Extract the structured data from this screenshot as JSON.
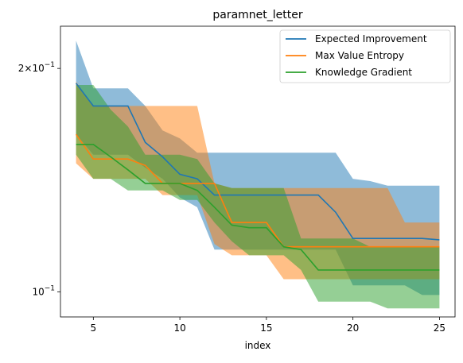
{
  "chart_data": {
    "type": "line",
    "title": "paramnet_letter",
    "xlabel": "index",
    "ylabel": "",
    "yscale": "log",
    "xlim": [
      3.1,
      25.9
    ],
    "ylim": [
      0.0925,
      0.228
    ],
    "grid": false,
    "legend_position": "top-right",
    "x": [
      4,
      5,
      6,
      7,
      8,
      9,
      10,
      11,
      12,
      13,
      14,
      15,
      16,
      17,
      18,
      19,
      20,
      21,
      22,
      23,
      24,
      25
    ],
    "x_ticks": [
      5,
      10,
      15,
      20,
      25
    ],
    "x_tick_labels": [
      "5",
      "10",
      "15",
      "20",
      "25"
    ],
    "y_ticks": [
      {
        "value": 0.2,
        "base": "2×10",
        "exp": "−1"
      },
      {
        "value": 0.1,
        "base": "10",
        "exp": "−1"
      }
    ],
    "series": [
      {
        "name": "Expected Improvement",
        "color": "#1f77b4",
        "values": [
          0.191,
          0.178,
          0.178,
          0.178,
          0.159,
          0.152,
          0.144,
          0.142,
          0.135,
          0.135,
          0.135,
          0.135,
          0.135,
          0.135,
          0.135,
          0.128,
          0.118,
          0.118,
          0.118,
          0.118,
          0.118,
          0.1175
        ],
        "lower": [
          0.163,
          0.153,
          0.153,
          0.153,
          0.147,
          0.142,
          0.134,
          0.13,
          0.114,
          0.114,
          0.114,
          0.114,
          0.114,
          0.114,
          0.114,
          0.114,
          0.102,
          0.102,
          0.102,
          0.102,
          0.099,
          0.099
        ],
        "upper": [
          0.218,
          0.188,
          0.188,
          0.188,
          0.178,
          0.165,
          0.161,
          0.154,
          0.154,
          0.154,
          0.154,
          0.154,
          0.154,
          0.154,
          0.154,
          0.154,
          0.142,
          0.141,
          0.139,
          0.139,
          0.139,
          0.139
        ]
      },
      {
        "name": "Max Value Entropy",
        "color": "#ff7f0e",
        "values": [
          0.163,
          0.151,
          0.151,
          0.151,
          0.148,
          0.14,
          0.14,
          0.14,
          0.14,
          0.124,
          0.124,
          0.124,
          0.115,
          0.115,
          0.115,
          0.115,
          0.115,
          0.115,
          0.115,
          0.115,
          0.115,
          0.115
        ],
        "lower": [
          0.149,
          0.142,
          0.142,
          0.142,
          0.142,
          0.135,
          0.135,
          0.135,
          0.116,
          0.112,
          0.112,
          0.112,
          0.104,
          0.104,
          0.104,
          0.104,
          0.104,
          0.104,
          0.104,
          0.104,
          0.104,
          0.104
        ],
        "upper": [
          0.192,
          0.178,
          0.178,
          0.178,
          0.178,
          0.178,
          0.178,
          0.178,
          0.14,
          0.138,
          0.138,
          0.138,
          0.138,
          0.138,
          0.138,
          0.138,
          0.138,
          0.138,
          0.138,
          0.124,
          0.124,
          0.124
        ]
      },
      {
        "name": "Knowledge Gradient",
        "color": "#2ca02c",
        "values": [
          0.158,
          0.158,
          0.152,
          0.146,
          0.14,
          0.14,
          0.14,
          0.137,
          0.13,
          0.123,
          0.122,
          0.122,
          0.115,
          0.114,
          0.107,
          0.107,
          0.107,
          0.107,
          0.107,
          0.107,
          0.107,
          0.107
        ],
        "lower": [
          0.153,
          0.142,
          0.142,
          0.137,
          0.137,
          0.137,
          0.133,
          0.133,
          0.124,
          0.117,
          0.112,
          0.112,
          0.112,
          0.107,
          0.097,
          0.097,
          0.097,
          0.097,
          0.095,
          0.095,
          0.095,
          0.095
        ],
        "upper": [
          0.19,
          0.19,
          0.176,
          0.167,
          0.153,
          0.153,
          0.153,
          0.151,
          0.14,
          0.138,
          0.138,
          0.138,
          0.138,
          0.118,
          0.118,
          0.118,
          0.118,
          0.115,
          0.115,
          0.115,
          0.115,
          0.115
        ]
      }
    ]
  }
}
